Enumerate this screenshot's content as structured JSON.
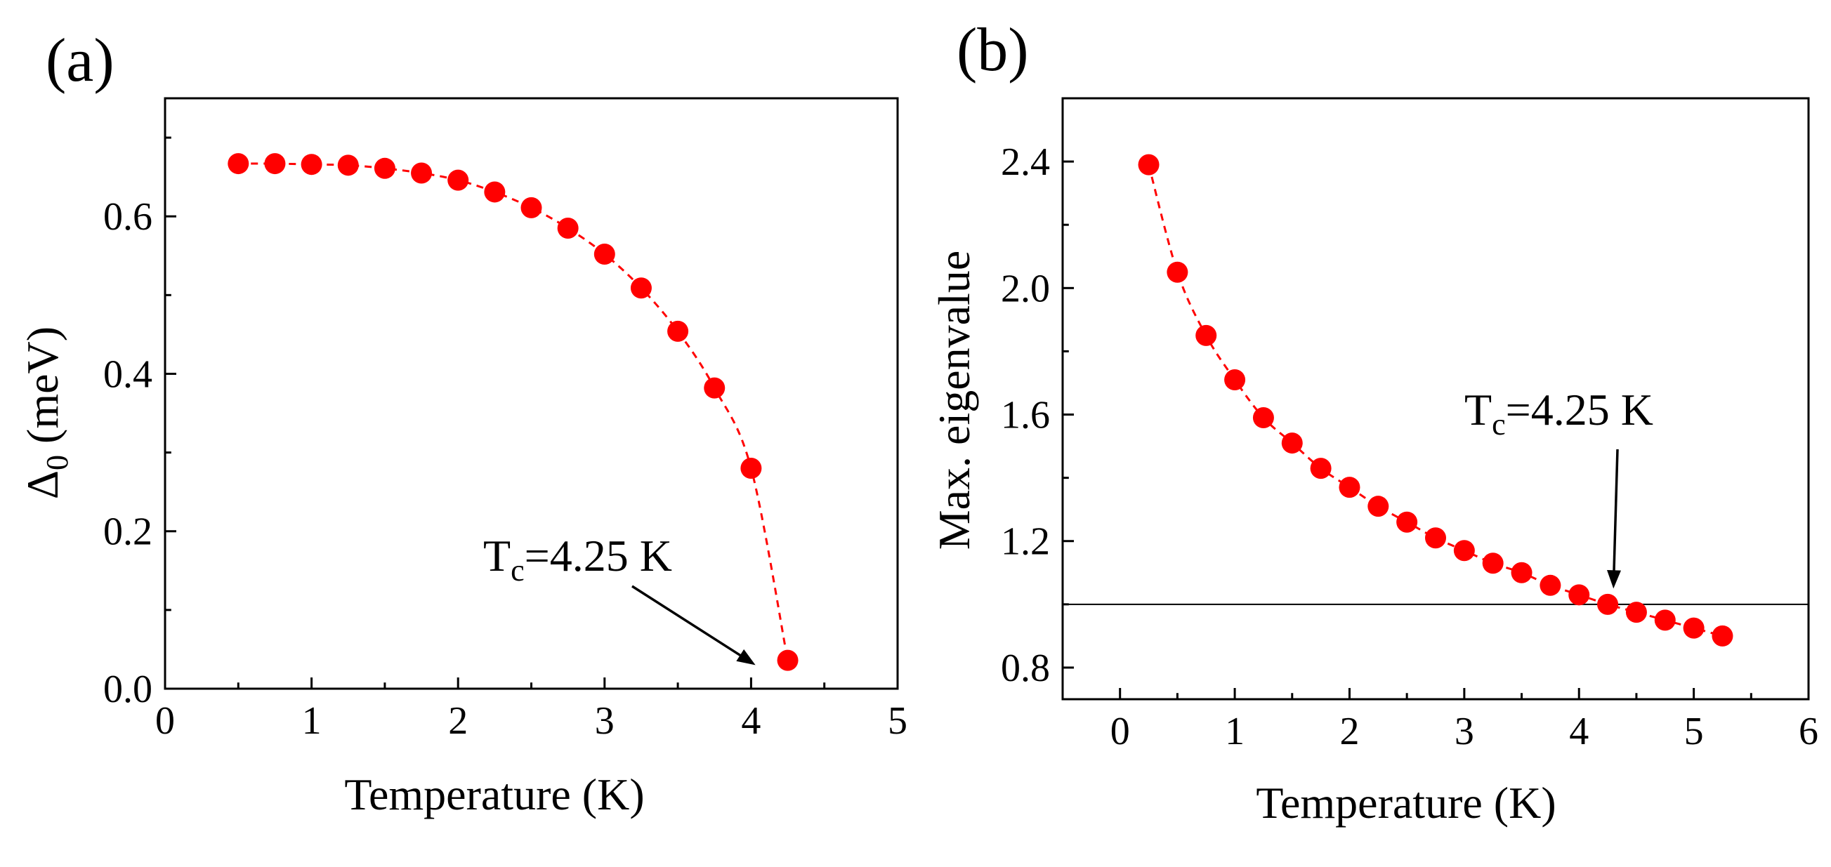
{
  "chart_data": [
    {
      "panel": "(a)",
      "type": "scatter",
      "title": "",
      "xlabel": "Temperature (K)",
      "ylabel_symbol": "Δ",
      "ylabel_sub": "0",
      "ylabel_rest": " (meV)",
      "xlim": [
        0,
        5
      ],
      "ylim": [
        0,
        0.75
      ],
      "xticks": [
        0,
        1,
        2,
        3,
        4,
        5
      ],
      "xtick_labels": [
        "0",
        "1",
        "2",
        "3",
        "4",
        "5"
      ],
      "yticks": [
        0,
        0.2,
        0.4,
        0.6
      ],
      "ytick_labels": [
        "0.0",
        "0.2",
        "0.4",
        "0.6"
      ],
      "grid": false,
      "series": [
        {
          "name": "Δ0",
          "color": "#ff0000",
          "line_style": "dashed",
          "x": [
            0.5,
            0.75,
            1.0,
            1.25,
            1.5,
            1.75,
            2.0,
            2.25,
            2.5,
            2.75,
            3.0,
            3.25,
            3.5,
            3.75,
            4.0,
            4.25
          ],
          "y": [
            0.667,
            0.667,
            0.666,
            0.665,
            0.661,
            0.655,
            0.646,
            0.631,
            0.611,
            0.585,
            0.552,
            0.509,
            0.454,
            0.382,
            0.28,
            0.036
          ]
        }
      ],
      "annotation": {
        "text_main": "T",
        "text_sub": "c",
        "text_rest": "=4.25 K",
        "arrow_target": [
          4.03,
          0.03
        ]
      }
    },
    {
      "panel": "(b)",
      "type": "scatter",
      "title": "",
      "xlabel": "Temperature (K)",
      "ylabel": "Max. eigenvalue",
      "xlim": [
        -0.5,
        6
      ],
      "ylim": [
        0.7,
        2.6
      ],
      "xticks": [
        0,
        1,
        2,
        3,
        4,
        5,
        6
      ],
      "xtick_labels": [
        "0",
        "1",
        "2",
        "3",
        "4",
        "5",
        "6"
      ],
      "yticks": [
        0.8,
        1.2,
        1.6,
        2.0,
        2.4
      ],
      "ytick_labels": [
        "0.8",
        "1.2",
        "1.6",
        "2.0",
        "2.4"
      ],
      "grid": false,
      "reference_line_y": 1.0,
      "series": [
        {
          "name": "Max. eigenvalue",
          "color": "#ff0000",
          "line_style": "dashed",
          "x": [
            0.25,
            0.5,
            0.75,
            1.0,
            1.25,
            1.5,
            1.75,
            2.0,
            2.25,
            2.5,
            2.75,
            3.0,
            3.25,
            3.5,
            3.75,
            4.0,
            4.25,
            4.5,
            4.75,
            5.0,
            5.25
          ],
          "y": [
            2.39,
            2.05,
            1.85,
            1.71,
            1.59,
            1.51,
            1.43,
            1.37,
            1.31,
            1.26,
            1.21,
            1.17,
            1.13,
            1.1,
            1.06,
            1.03,
            1.0,
            0.975,
            0.95,
            0.925,
            0.9
          ]
        }
      ],
      "annotation": {
        "text_main": "T",
        "text_sub": "c",
        "text_rest": "=4.25 K",
        "arrow_target": [
          4.3,
          1.05
        ]
      }
    }
  ]
}
